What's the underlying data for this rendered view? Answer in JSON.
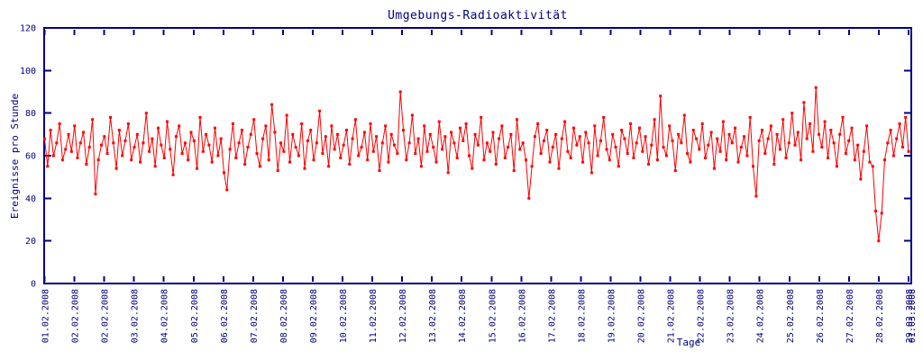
{
  "colors": {
    "axis": "#000080",
    "series": "#ff0000",
    "background": "#ffffff"
  },
  "chart_data": {
    "type": "line",
    "title": "Umgebungs-Radioaktivität",
    "xlabel": "Tage",
    "ylabel": "Ereignisse pro Stunde",
    "ylim": [
      0,
      120
    ],
    "yticks": [
      0,
      20,
      40,
      60,
      80,
      100,
      120
    ],
    "x_range": [
      "01.02.2008",
      "01.03.2008"
    ],
    "grid": false,
    "legend": false,
    "marker": "filled-square",
    "style": "linespoints",
    "series_name": "Ereignisse pro Stunde",
    "xtick_labels": [
      "01.02.2008",
      "02.02.2008",
      "02.02.2008",
      "03.02.2008",
      "04.02.2008",
      "05.02.2008",
      "06.02.2008",
      "07.02.2008",
      "08.02.2008",
      "09.02.2008",
      "10.02.2008",
      "11.02.2008",
      "12.02.2008",
      "13.02.2008",
      "14.02.2008",
      "15.02.2008",
      "16.02.2008",
      "17.02.2008",
      "18.02.2008",
      "19.02.2008",
      "20.02.2008",
      "21.02.2008",
      "22.02.2008",
      "23.02.2008",
      "24.02.2008",
      "25.02.2008",
      "26.02.2008",
      "27.02.2008",
      "28.02.2008",
      "29.02.2008",
      "01.03.2008"
    ],
    "values": [
      68,
      55,
      72,
      60,
      66,
      75,
      58,
      63,
      70,
      62,
      74,
      59,
      66,
      71,
      56,
      64,
      77,
      42,
      58,
      65,
      69,
      61,
      78,
      66,
      54,
      72,
      60,
      67,
      75,
      58,
      64,
      70,
      57,
      66,
      80,
      62,
      68,
      55,
      73,
      65,
      59,
      76,
      63,
      51,
      69,
      74,
      61,
      66,
      58,
      71,
      67,
      54,
      78,
      62,
      70,
      65,
      57,
      73,
      60,
      68,
      52,
      44,
      63,
      75,
      59,
      66,
      72,
      56,
      64,
      70,
      77,
      61,
      55,
      68,
      74,
      58,
      84,
      71,
      53,
      66,
      62,
      79,
      57,
      70,
      64,
      60,
      75,
      54,
      67,
      72,
      58,
      66,
      81,
      61,
      69,
      55,
      74,
      63,
      70,
      59,
      65,
      72,
      56,
      68,
      77,
      60,
      64,
      71,
      58,
      75,
      62,
      69,
      53,
      66,
      74,
      57,
      70,
      65,
      61,
      90,
      72,
      58,
      66,
      79,
      61,
      68,
      55,
      74,
      62,
      70,
      64,
      57,
      76,
      63,
      69,
      52,
      71,
      66,
      59,
      73,
      67,
      75,
      60,
      54,
      70,
      65,
      78,
      58,
      66,
      62,
      71,
      56,
      68,
      74,
      59,
      64,
      70,
      53,
      77,
      63,
      66,
      58,
      40,
      55,
      69,
      75,
      61,
      67,
      72,
      57,
      64,
      70,
      54,
      68,
      76,
      62,
      59,
      73,
      65,
      69,
      57,
      71,
      66,
      52,
      74,
      60,
      67,
      78,
      63,
      58,
      70,
      64,
      55,
      72,
      68,
      61,
      75,
      59,
      66,
      73,
      62,
      69,
      56,
      65,
      77,
      58,
      88,
      64,
      60,
      74,
      67,
      53,
      70,
      66,
      79,
      61,
      57,
      72,
      68,
      63,
      75,
      59,
      65,
      71,
      54,
      68,
      62,
      76,
      58,
      70,
      66,
      73,
      57,
      64,
      69,
      60,
      78,
      55,
      41,
      67,
      72,
      61,
      68,
      74,
      56,
      70,
      63,
      77,
      59,
      66,
      80,
      65,
      71,
      58,
      85,
      68,
      75,
      62,
      92,
      70,
      64,
      76,
      59,
      72,
      66,
      55,
      70,
      78,
      61,
      67,
      73,
      58,
      65,
      49,
      62,
      74,
      57,
      55,
      34,
      20,
      33,
      58,
      66,
      72,
      60,
      68,
      75,
      64,
      78,
      62
    ]
  }
}
